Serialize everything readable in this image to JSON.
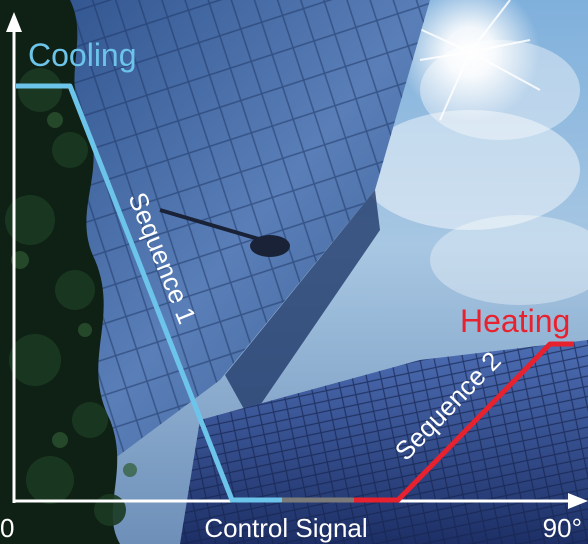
{
  "labels": {
    "cooling": "Cooling",
    "heating": "Heating",
    "sequence_1": "Sequence 1",
    "sequence_2": "Sequence 2",
    "x_axis": "Control Signal",
    "x_min": "0",
    "x_max": "90°"
  },
  "colors": {
    "cooling": "#6cc4ea",
    "heating": "#e8212e",
    "deadband": "#7a7a7a",
    "axis": "#ffffff"
  }
}
